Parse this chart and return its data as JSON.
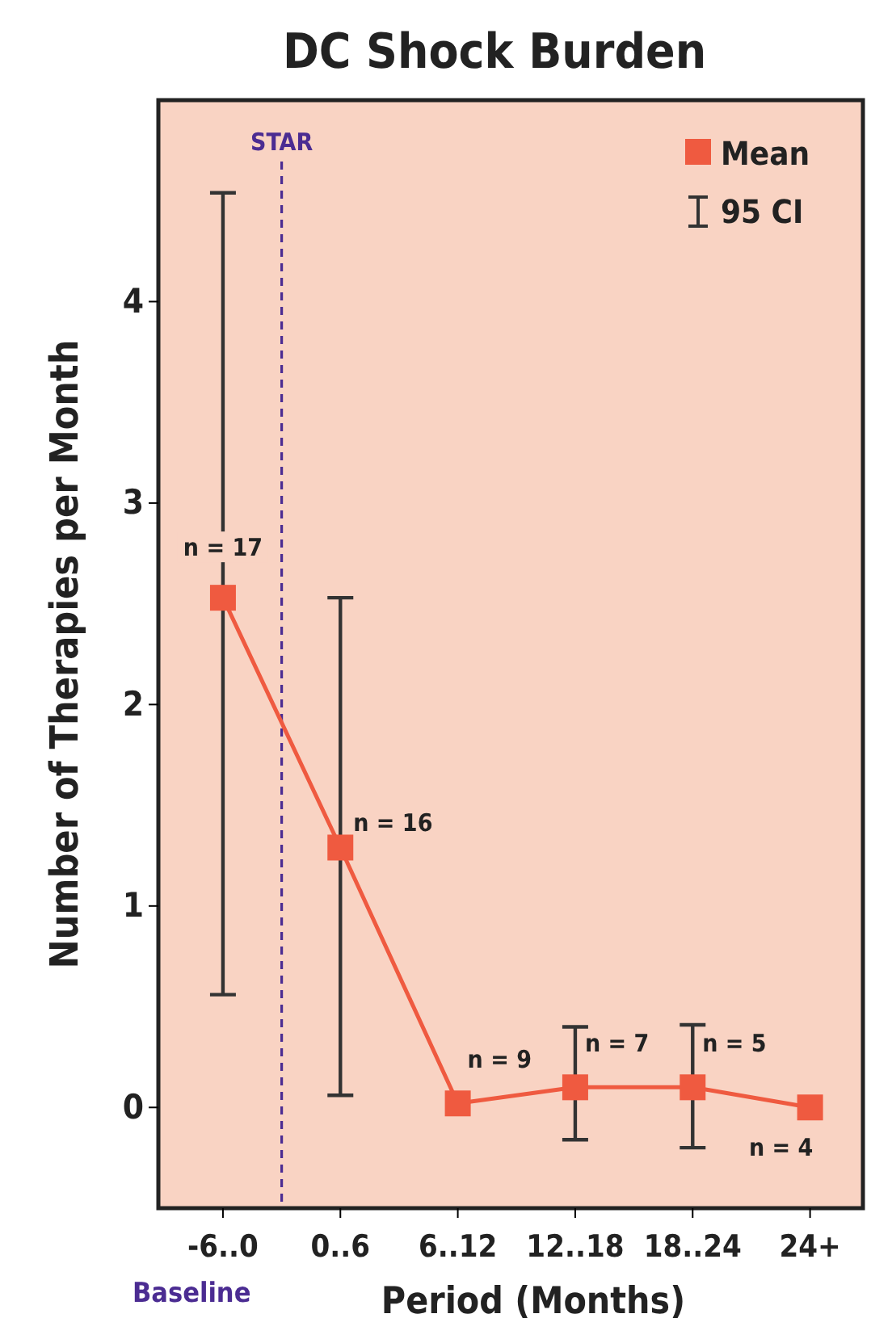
{
  "chart_data": {
    "type": "line",
    "title": "DC Shock Burden",
    "xlabel": "Period (Months)",
    "ylabel": "Number of Therapies per Month",
    "categories": [
      "-6..0",
      "0..6",
      "6..12",
      "12..18",
      "18..24",
      "24+"
    ],
    "ylim": [
      -0.5,
      5
    ],
    "yticks": [
      0,
      1,
      2,
      3,
      4
    ],
    "series": [
      {
        "name": "Mean",
        "color": "#ef5a40",
        "values": [
          2.53,
          1.29,
          0.02,
          0.1,
          0.1,
          0.0
        ],
        "errors": [
          [
            0.56,
            4.54
          ],
          [
            0.06,
            2.53
          ],
          null,
          [
            -0.16,
            0.4
          ],
          [
            -0.2,
            0.41
          ],
          null
        ]
      }
    ],
    "marker": "square",
    "line_style": "solid",
    "grid": false,
    "legend": "top right",
    "ref_lines": [
      {
        "axis": "x",
        "value": "0..6",
        "label": "STAR",
        "color": "#4b2c92",
        "line_style": "dashed"
      }
    ],
    "annotations": [
      {
        "text": "n = 17",
        "x": "-6..0",
        "y": 2.53
      },
      {
        "text": "n = 16",
        "x": "0..6",
        "y": 1.29
      },
      {
        "text": "n = 9",
        "x": "6..12",
        "y": 0.02
      },
      {
        "text": "n = 7",
        "x": "12..18",
        "y": 0.1
      },
      {
        "text": "n = 5",
        "x": "18..24",
        "y": 0.1
      },
      {
        "text": "n = 4",
        "x": "24+",
        "y": 0.0
      },
      "95 CI",
      "Baseline"
    ]
  }
}
